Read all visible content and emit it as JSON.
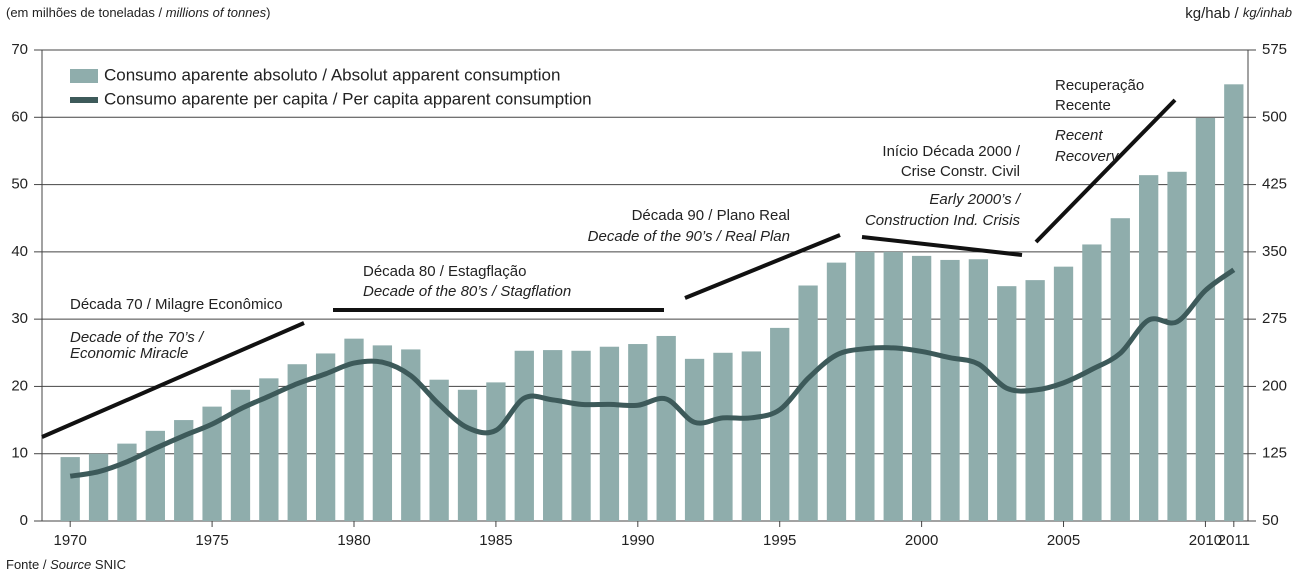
{
  "chart_data": {
    "type": "bar_line",
    "title_parts": [
      "(em milhões de toneladas / ",
      "millions of tonnes",
      ")"
    ],
    "y2_label_parts": [
      "kg/hab / ",
      "kg/inhab"
    ],
    "source_parts": [
      "Fonte / ",
      "Source",
      " SNIC"
    ],
    "categories": [
      "1970",
      null,
      null,
      null,
      null,
      "1975",
      null,
      null,
      null,
      null,
      "1980",
      null,
      null,
      null,
      null,
      "1985",
      null,
      null,
      null,
      null,
      "1990",
      null,
      null,
      null,
      null,
      "1995",
      null,
      null,
      null,
      null,
      "2000",
      null,
      null,
      null,
      null,
      "2005",
      null,
      null,
      null,
      null,
      "2010",
      "2011"
    ],
    "series": [
      {
        "name": "Consumo aparente absoluto / Absolut apparent consumption",
        "color": "#8fadac",
        "type": "bar",
        "values": [
          9.5,
          10,
          11.5,
          13.4,
          15,
          17,
          19.5,
          21.2,
          23.3,
          24.9,
          27.1,
          26.1,
          25.5,
          21,
          19.5,
          20.6,
          25.3,
          25.4,
          25.3,
          25.9,
          26.3,
          27.5,
          24.1,
          25,
          25.2,
          28.7,
          35,
          38.4,
          40,
          40,
          39.4,
          38.8,
          38.9,
          34.9,
          35.8,
          37.8,
          41.1,
          45,
          51.4,
          51.9,
          59.9,
          64.9
        ]
      },
      {
        "name": "Consumo aparente per capita / Per capita apparent consumption",
        "color": "#3d5a5a",
        "type": "line",
        "axis": "y2",
        "values": [
          100,
          105,
          116,
          131,
          145,
          158,
          175,
          189,
          203,
          214,
          226,
          227,
          212,
          180,
          154,
          151,
          187,
          185,
          180,
          180,
          179,
          186,
          160,
          165,
          165,
          174,
          209,
          235,
          242,
          243,
          239,
          232,
          225,
          198,
          196,
          204,
          219,
          237,
          274,
          272,
          307,
          330
        ]
      }
    ],
    "ylim": [
      0,
      70
    ],
    "yticks": [
      0,
      10,
      20,
      30,
      40,
      50,
      60,
      70
    ],
    "y2lim": [
      50,
      575
    ],
    "y2ticks": [
      50,
      125,
      200,
      275,
      350,
      425,
      500,
      575
    ],
    "grid": true,
    "annotations": [
      [
        "Década 70 / Milagre Econômico",
        "Decade of the 70’s /",
        "Economic Miracle"
      ],
      [
        "Década 80 / Estagflação",
        "Decade of the 80’s / Stagflation"
      ],
      [
        "Década 90 / Plano Real",
        "Decade of the 90’s / Real Plan"
      ],
      [
        "Início Década 2000 /",
        "Crise Constr. Civil",
        "Early 2000’s /",
        "Construction Ind. Crisis"
      ],
      [
        "Recuperação",
        "Recente",
        "Recent",
        "Recovery"
      ]
    ]
  }
}
